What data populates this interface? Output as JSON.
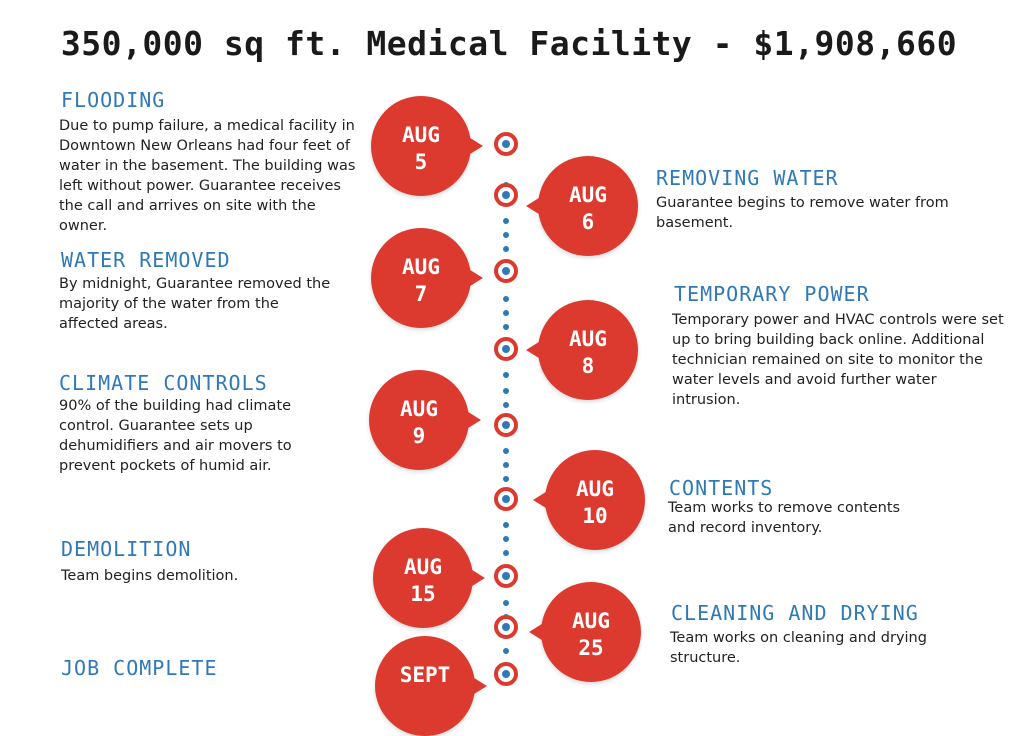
{
  "title": "350,000 sq ft. Medical Facility - $1,908,660",
  "events": [
    {
      "month": "AUG",
      "day": "5",
      "heading": "FLOODING",
      "text": "Due to pump failure, a medical facility in Downtown New Orleans had four feet of water in the basement. The building was left without power. Guarantee receives the call and arrives on site with the owner."
    },
    {
      "month": "AUG",
      "day": "6",
      "heading": "REMOVING WATER",
      "text": "Guarantee begins to remove water from basement."
    },
    {
      "month": "AUG",
      "day": "7",
      "heading": "WATER REMOVED",
      "text": "By midnight, Guarantee removed the majority of the water from the affected areas."
    },
    {
      "month": "AUG",
      "day": "8",
      "heading": "TEMPORARY POWER",
      "text": "Temporary power and HVAC controls were set up to bring building back online. Additional technician remained on site to monitor the water levels and avoid further water intrusion."
    },
    {
      "month": "AUG",
      "day": "9",
      "heading": "CLIMATE CONTROLS",
      "text": "90% of the building had climate control. Guarantee sets up dehumidifiers and air movers to prevent pockets of humid air."
    },
    {
      "month": "AUG",
      "day": "10",
      "heading": "CONTENTS",
      "text": "Team works to remove contents and record inventory."
    },
    {
      "month": "AUG",
      "day": "15",
      "heading": "DEMOLITION",
      "text": "Team begins demolition."
    },
    {
      "month": "AUG",
      "day": "25",
      "heading": "CLEANING AND DRYING",
      "text": "Team works on cleaning and drying structure."
    },
    {
      "month": "SEPT",
      "day": "",
      "heading": "JOB COMPLETE",
      "text": ""
    }
  ]
}
